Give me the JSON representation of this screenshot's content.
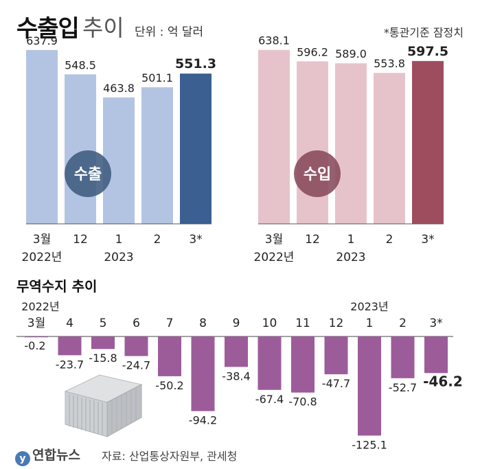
{
  "header": {
    "title_main": "수출입",
    "title_sub": "추이",
    "unit": "단위 : 억 달러",
    "note": "*통관기준 잠정치"
  },
  "chart_data": [
    {
      "type": "bar",
      "badge": "수출",
      "categories": [
        "3월",
        "12",
        "1",
        "2",
        "3*"
      ],
      "year_labels": [
        "2022년",
        "",
        "2023",
        "",
        ""
      ],
      "values": [
        637.9,
        548.5,
        463.8,
        501.1,
        551.3
      ],
      "value_labels": [
        "637.9",
        "548.5",
        "463.8",
        "501.1",
        "551.3"
      ],
      "colors": [
        "#b3c4e3",
        "#b3c4e3",
        "#b3c4e3",
        "#b3c4e3",
        "#3a5f90"
      ],
      "ylim": [
        0,
        650
      ]
    },
    {
      "type": "bar",
      "badge": "수입",
      "categories": [
        "3월",
        "12",
        "1",
        "2",
        "3*"
      ],
      "year_labels": [
        "2022년",
        "",
        "2023",
        "",
        ""
      ],
      "values": [
        638.1,
        596.2,
        589.0,
        553.8,
        597.5
      ],
      "value_labels": [
        "638.1",
        "596.2",
        "589.0",
        "553.8",
        "597.5"
      ],
      "colors": [
        "#e6c3ca",
        "#e6c3ca",
        "#e6c3ca",
        "#e6c3ca",
        "#9e4d5e"
      ],
      "ylim": [
        0,
        650
      ]
    },
    {
      "type": "bar",
      "title": "무역수지 추이",
      "categories": [
        "3월",
        "4",
        "5",
        "6",
        "7",
        "8",
        "9",
        "10",
        "11",
        "12",
        "1",
        "2",
        "3*"
      ],
      "year_labels": [
        {
          "text": "2022년",
          "index": 0
        },
        {
          "text": "2023년",
          "index": 10
        }
      ],
      "values": [
        -0.2,
        -23.7,
        -15.8,
        -24.7,
        -50.2,
        -94.2,
        -38.4,
        -67.4,
        -70.8,
        -47.7,
        -125.1,
        -52.7,
        -46.2
      ],
      "value_labels": [
        "-0.2",
        "-23.7",
        "-15.8",
        "-24.7",
        "-50.2",
        "-94.2",
        "-38.4",
        "-67.4",
        "-70.8",
        "-47.7",
        "-125.1",
        "-52.7",
        "-46.2"
      ],
      "color": "#9c5c9a",
      "ylim": [
        -130,
        0
      ]
    }
  ],
  "footer": {
    "logo_mark": "y",
    "logo": "연합뉴스",
    "source": "자료: 산업통상자원부, 관세청"
  },
  "icons": {
    "container": "shipping-container-icon"
  }
}
